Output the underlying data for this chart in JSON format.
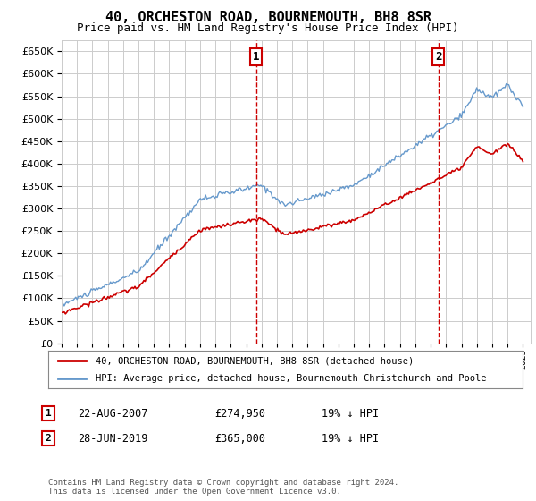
{
  "title": "40, ORCHESTON ROAD, BOURNEMOUTH, BH8 8SR",
  "subtitle": "Price paid vs. HM Land Registry's House Price Index (HPI)",
  "ylim": [
    0,
    675000
  ],
  "yticks": [
    0,
    50000,
    100000,
    150000,
    200000,
    250000,
    300000,
    350000,
    400000,
    450000,
    500000,
    550000,
    600000,
    650000
  ],
  "legend_line1": "40, ORCHESTON ROAD, BOURNEMOUTH, BH8 8SR (detached house)",
  "legend_line2": "HPI: Average price, detached house, Bournemouth Christchurch and Poole",
  "sale1_date": "22-AUG-2007",
  "sale1_price": "£274,950",
  "sale1_hpi": "19% ↓ HPI",
  "sale2_date": "28-JUN-2019",
  "sale2_price": "£365,000",
  "sale2_hpi": "19% ↓ HPI",
  "footer": "Contains HM Land Registry data © Crown copyright and database right 2024.\nThis data is licensed under the Open Government Licence v3.0.",
  "line_color_property": "#cc0000",
  "line_color_hpi": "#6699cc",
  "grid_color": "#cccccc",
  "background_color": "#ffffff",
  "sale1_year": 2007.64,
  "sale1_value": 274950,
  "sale2_year": 2019.49,
  "sale2_value": 365000
}
